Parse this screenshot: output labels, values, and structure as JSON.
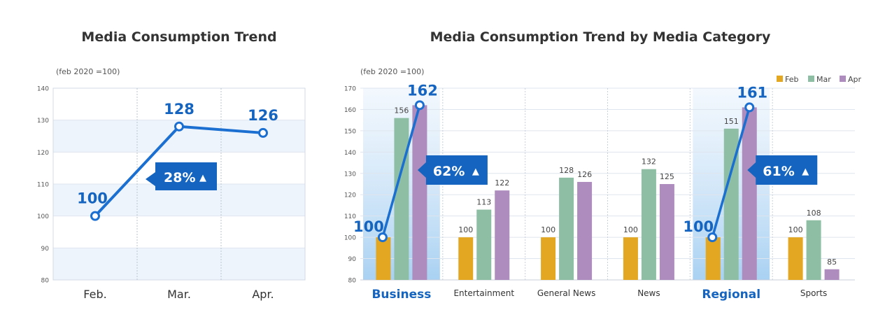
{
  "colors": {
    "accent": "#1565c0",
    "line": "#1a6fd1",
    "feb": "#e3a722",
    "mar": "#8ebfa4",
    "apr": "#ae8cbd",
    "grid": "#dfe5ee",
    "band": "#eef4fc",
    "highlight": "#a9d1f2",
    "text": "#333333",
    "axis_text": "#555555"
  },
  "chart_data": [
    {
      "type": "line",
      "title": "Media Consumption Trend",
      "unit_note": "(feb 2020 =100)",
      "categories": [
        "Feb.",
        "Mar.",
        "Apr."
      ],
      "values": [
        100,
        128,
        126
      ],
      "value_labels": [
        "100",
        "128",
        "126"
      ],
      "ylim": [
        80,
        140
      ],
      "yticks": [
        "80",
        "90",
        "100",
        "110",
        "120",
        "130",
        "140"
      ],
      "grid": true,
      "annotation": {
        "value": "28%",
        "arrow": "▲"
      }
    },
    {
      "type": "bar",
      "title": "Media Consumption Trend by Media Category",
      "unit_note": "(feb 2020 =100)",
      "categories": [
        "Business",
        "Entertainment",
        "General News",
        "News",
        "Regional",
        "Sports"
      ],
      "highlighted_categories": [
        "Business",
        "Regional"
      ],
      "series": [
        {
          "name": "Feb",
          "values": [
            100,
            100,
            100,
            100,
            100,
            100
          ]
        },
        {
          "name": "Mar",
          "values": [
            156,
            113,
            128,
            132,
            151,
            108
          ]
        },
        {
          "name": "Apr",
          "values": [
            162,
            122,
            126,
            125,
            161,
            85
          ]
        }
      ],
      "bar_labels": [
        [
          "",
          "156",
          ""
        ],
        [
          "100",
          "113",
          "122"
        ],
        [
          "100",
          "128",
          "126"
        ],
        [
          "100",
          "132",
          "125"
        ],
        [
          "",
          "151",
          ""
        ],
        [
          "100",
          "108",
          "85"
        ]
      ],
      "ylim": [
        80,
        170
      ],
      "yticks": [
        "80",
        "90",
        "100",
        "110",
        "120",
        "130",
        "140",
        "150",
        "160",
        "170"
      ],
      "grid": true,
      "legend_position": "top-right",
      "overlays": [
        {
          "category": "Business",
          "from": 100,
          "to": 162,
          "from_label": "100",
          "to_label": "162",
          "change": "62%",
          "arrow": "▲"
        },
        {
          "category": "Regional",
          "from": 100,
          "to": 161,
          "from_label": "100",
          "to_label": "161",
          "change": "61%",
          "arrow": "▲"
        }
      ]
    }
  ]
}
